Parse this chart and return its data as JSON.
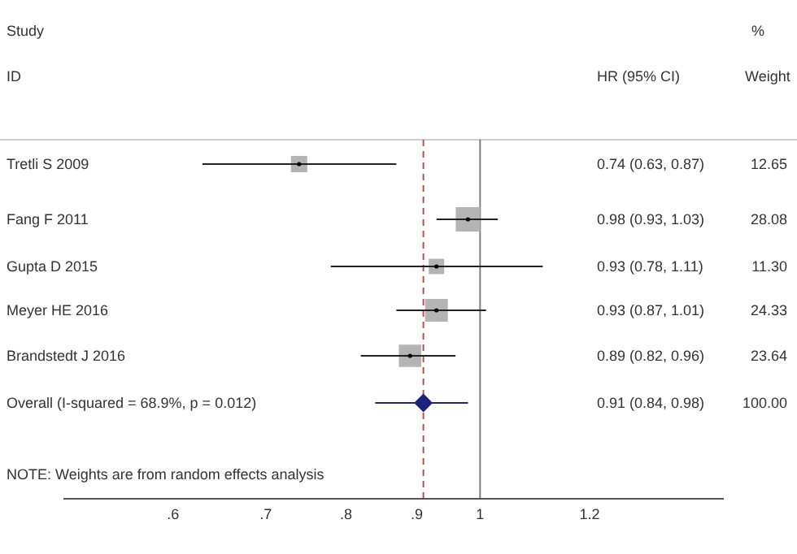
{
  "chart_data": {
    "type": "scatter",
    "orientation": "horizontal",
    "log": "x",
    "categories": [
      "Tretli S 2009",
      "Fang F 2011",
      "Gupta D 2015",
      "Meyer HE 2016",
      "Brandstedt J 2016",
      "Overall  (I-squared = 68.9%, p = 0.012)"
    ],
    "series": [
      {
        "type": "bubble",
        "color": "#b4b4b4",
        "marker": "square",
        "values": [
          0.74,
          0.98,
          0.93,
          0.93,
          0.89,
          null
        ],
        "errors": [
          [
            0.63,
            0.87
          ],
          [
            0.93,
            1.03
          ],
          [
            0.78,
            1.11
          ],
          [
            0.87,
            1.01
          ],
          [
            0.82,
            0.96
          ],
          null
        ],
        "sizes": [
          0.45,
          1,
          0.4,
          0.87,
          0.84,
          null
        ]
      },
      {
        "color": "#1a237e",
        "marker": "diamond",
        "values": [
          null,
          null,
          null,
          null,
          null,
          0.91
        ],
        "errors": [
          null,
          null,
          null,
          null,
          null,
          [
            0.84,
            0.98
          ]
        ]
      }
    ],
    "xlim": [
      0.5,
      1.5
    ],
    "xticks": [
      {
        "value": 0.6,
        "label": ".6"
      },
      {
        "value": 0.7,
        "label": ".7"
      },
      {
        "value": 0.8,
        "label": ".8"
      },
      {
        "value": 0.9,
        "label": ".9"
      },
      1,
      1.2
    ],
    "ref_lines": [
      {
        "axis": "x",
        "value": 1,
        "color": "#808080",
        "line_style": "solid"
      },
      {
        "axis": "x",
        "value": 0.91,
        "color": "#c0504d",
        "line_style": "dashed"
      }
    ],
    "annotations": [
      "Study",
      "ID",
      "HR (95% CI)",
      "%",
      "Weight",
      "NOTE: Weights are from random effects analysis",
      "0.74 (0.63, 0.87)",
      "0.98 (0.93, 1.03)",
      "0.93 (0.78, 1.11)",
      "0.93 (0.87, 1.01)",
      "0.89 (0.82, 0.96)",
      "0.91 (0.84, 0.98)",
      "12.65",
      "28.08",
      "11.30",
      "24.33",
      "23.64",
      "100.00"
    ]
  }
}
